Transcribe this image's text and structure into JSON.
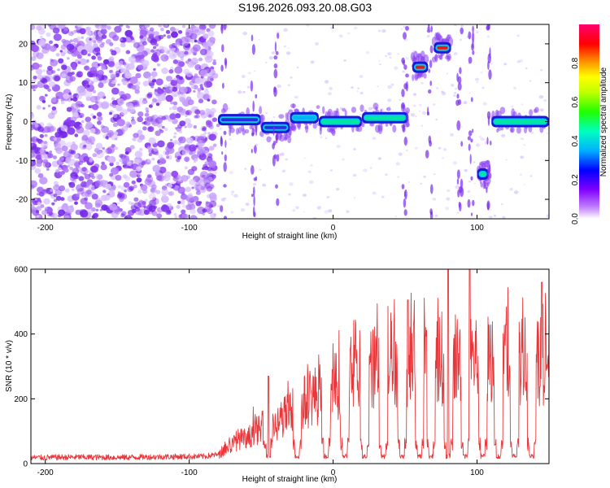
{
  "title": "S196.2026.093.20.08.G03",
  "colors": {
    "snr_line": "#e8373a",
    "spectrogram_weak": "#c9a8ff",
    "spectrogram_mid": "#7a2cf0",
    "spectrogram_strong": "#2020e0",
    "colorbar": [
      "#ffffff",
      "#a020f0",
      "#0000ff",
      "#00c0ff",
      "#00ff80",
      "#40ff00",
      "#ffff00",
      "#ff8000",
      "#ff0000",
      "#ff0080"
    ]
  },
  "chart_data": [
    {
      "type": "heatmap",
      "name": "spectrogram",
      "xlabel": "Height of straight line (km)",
      "ylabel": "Frequency (Hz)",
      "xlim": [
        -210,
        150
      ],
      "ylim": [
        -25,
        25
      ],
      "x_ticks": [
        -200,
        -100,
        0,
        100
      ],
      "x_tick_labels": [
        "-200",
        "-100",
        "0",
        "100"
      ],
      "y_ticks": [
        -20,
        -10,
        0,
        10,
        20
      ],
      "y_tick_labels": [
        "-20",
        "-10",
        "0",
        "10",
        "20"
      ],
      "colorbar": {
        "label": "Normalized spectral amplitude",
        "range": [
          0,
          1
        ],
        "ticks": [
          0.0,
          0.2,
          0.4,
          0.6,
          0.8
        ],
        "tick_labels": [
          "0.0",
          "0.2",
          "0.4",
          "0.6",
          "0.8"
        ]
      },
      "segments": [
        {
          "x_start": -80,
          "x_end": -50,
          "freq": 0.5,
          "amplitude": 0.3
        },
        {
          "x_start": -50,
          "x_end": -30,
          "freq": -1.5,
          "amplitude": 0.35
        },
        {
          "x_start": -30,
          "x_end": -10,
          "freq": 1.0,
          "amplitude": 0.4
        },
        {
          "x_start": -10,
          "x_end": 20,
          "freq": 0.0,
          "amplitude": 0.5
        },
        {
          "x_start": 20,
          "x_end": 52,
          "freq": 1.0,
          "amplitude": 0.5
        },
        {
          "x_start": 55,
          "x_end": 66,
          "freq": 14.0,
          "amplitude": 0.9
        },
        {
          "x_start": 70,
          "x_end": 82,
          "freq": 19.0,
          "amplitude": 0.9
        },
        {
          "x_start": 100,
          "x_end": 108,
          "freq": -13.5,
          "amplitude": 0.5
        },
        {
          "x_start": 110,
          "x_end": 150,
          "freq": 0.0,
          "amplitude": 0.55
        }
      ]
    },
    {
      "type": "line",
      "name": "snr",
      "xlabel": "Height of straight line (km)",
      "ylabel": "SNR (10 * v/v)",
      "xlim": [
        -210,
        150
      ],
      "ylim": [
        0,
        600
      ],
      "x_ticks": [
        -200,
        -100,
        0,
        100
      ],
      "x_tick_labels": [
        "-200",
        "-100",
        "0",
        "100"
      ],
      "y_ticks": [
        0,
        200,
        400,
        600
      ],
      "y_tick_labels": [
        "0",
        "200",
        "400",
        "600"
      ],
      "series": [
        {
          "name": "SNR",
          "x": [
            -210,
            -180,
            -150,
            -120,
            -90,
            -80,
            -75,
            -70,
            -65,
            -60,
            -55,
            -50,
            -45,
            -40,
            -35,
            -30,
            -25,
            -20,
            -15,
            -10,
            -5,
            0,
            5,
            10,
            15,
            20,
            25,
            30,
            35,
            40,
            45,
            50,
            55,
            60,
            65,
            70,
            75,
            80,
            85,
            90,
            95,
            100,
            105,
            110,
            115,
            120,
            125,
            130,
            135,
            140,
            145,
            150
          ],
          "y": [
            18,
            20,
            19,
            21,
            22,
            28,
            55,
            70,
            95,
            80,
            130,
            120,
            150,
            140,
            170,
            190,
            210,
            230,
            250,
            260,
            270,
            285,
            300,
            310,
            330,
            340,
            350,
            360,
            370,
            375,
            380,
            385,
            380,
            385,
            390,
            385,
            395,
            390,
            385,
            390,
            388,
            392,
            385,
            395,
            390,
            388,
            390,
            395,
            392,
            390,
            395,
            400
          ]
        }
      ],
      "dropouts_x": [
        -45,
        -25,
        -5,
        8,
        22,
        35,
        48,
        60,
        68,
        80,
        92,
        104,
        115,
        126,
        138
      ],
      "peaks": [
        {
          "x": -45,
          "y": 270
        },
        {
          "x": 52,
          "y": 505
        },
        {
          "x": 80,
          "y": 600
        },
        {
          "x": 95,
          "y": 600
        },
        {
          "x": 145,
          "y": 560
        }
      ]
    }
  ]
}
